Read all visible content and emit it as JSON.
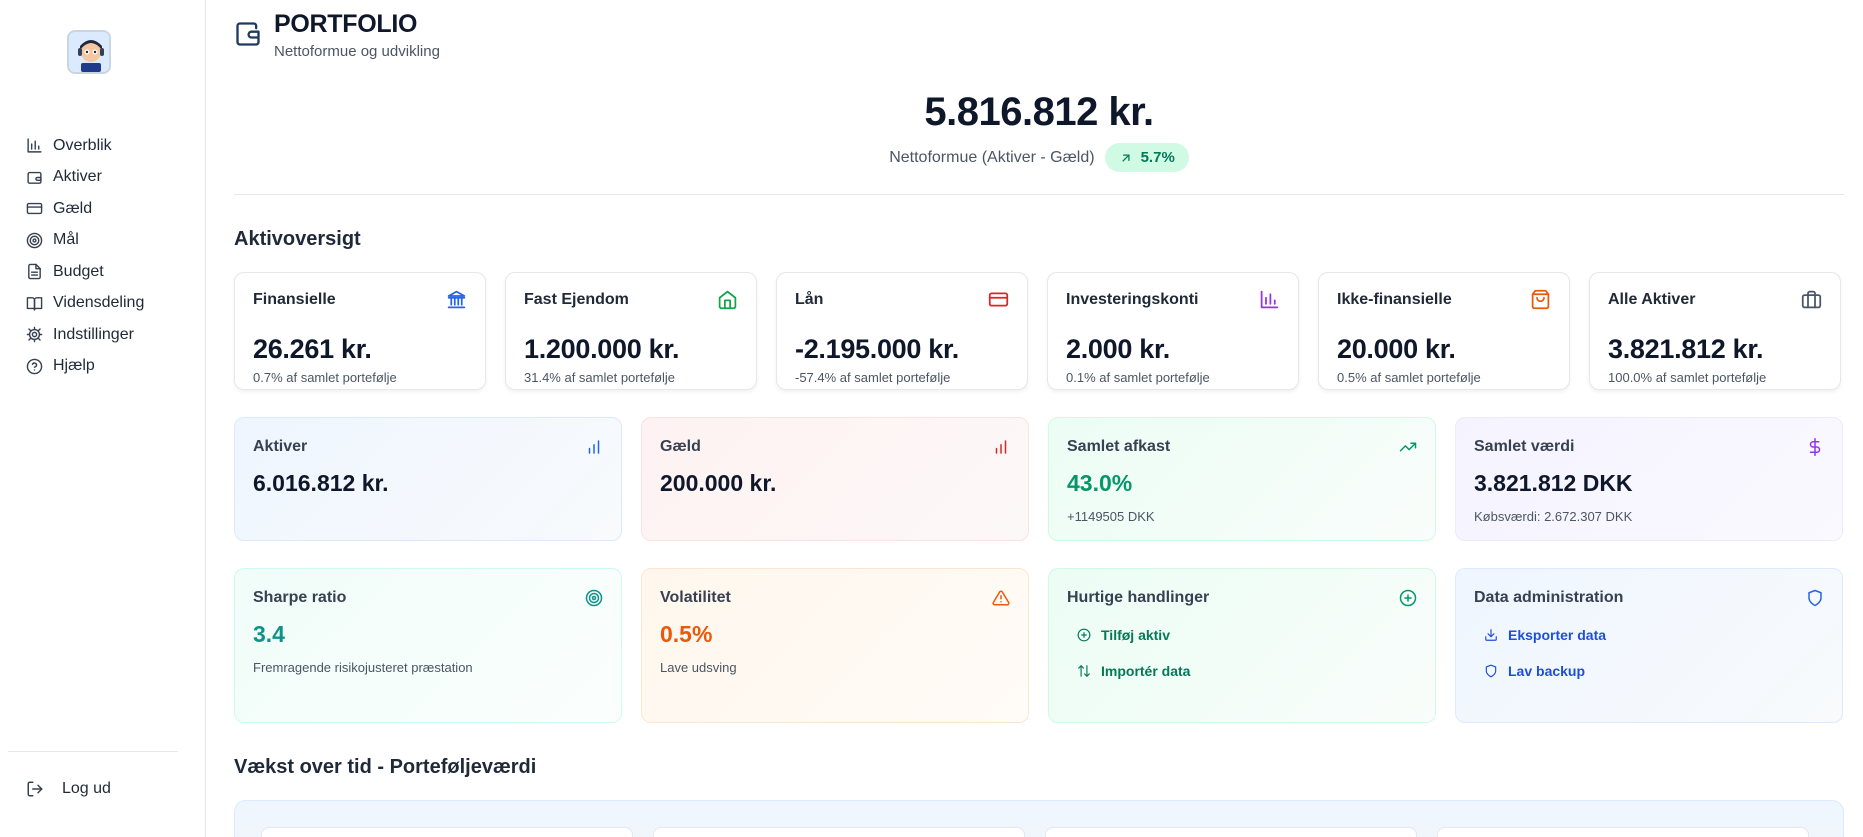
{
  "sidebar": {
    "items": [
      {
        "label": "Overblik",
        "icon": "bar-chart-icon"
      },
      {
        "label": "Aktiver",
        "icon": "wallet-icon"
      },
      {
        "label": "Gæld",
        "icon": "credit-card-icon"
      },
      {
        "label": "Mål",
        "icon": "target-icon"
      },
      {
        "label": "Budget",
        "icon": "file-text-icon"
      },
      {
        "label": "Vidensdeling",
        "icon": "book-icon"
      },
      {
        "label": "Indstillinger",
        "icon": "gear-icon"
      },
      {
        "label": "Hjælp",
        "icon": "help-circle-icon"
      }
    ],
    "logout_label": "Log ud"
  },
  "header": {
    "title": "PORTFOLIO",
    "subtitle": "Nettoformue og udvikling"
  },
  "networth": {
    "value": "5.816.812 kr.",
    "label": "Nettoformue (Aktiver - Gæld)",
    "change": "5.7%"
  },
  "asset_overview": {
    "title": "Aktivoversigt",
    "cards": [
      {
        "name": "Finansielle",
        "value": "26.261 kr.",
        "pct": "0.7% af samlet portefølje",
        "icon": "bank-icon",
        "color": "#2563eb"
      },
      {
        "name": "Fast Ejendom",
        "value": "1.200.000 kr.",
        "pct": "31.4% af samlet portefølje",
        "icon": "home-icon",
        "color": "#16a34a"
      },
      {
        "name": "Lån",
        "value": "-2.195.000 kr.",
        "pct": "-57.4% af samlet portefølje",
        "icon": "credit-card-icon",
        "color": "#dc2626"
      },
      {
        "name": "Investeringskonti",
        "value": "2.000 kr.",
        "pct": "0.1% af samlet portefølje",
        "icon": "bar-chart-icon",
        "color": "#9333ea"
      },
      {
        "name": "Ikke-finansielle",
        "value": "20.000 kr.",
        "pct": "0.5% af samlet portefølje",
        "icon": "shopping-bag-icon",
        "color": "#ea580c"
      },
      {
        "name": "Alle Aktiver",
        "value": "3.821.812 kr.",
        "pct": "100.0% af samlet portefølje",
        "icon": "briefcase-icon",
        "color": "#475569"
      }
    ]
  },
  "summary": {
    "aktiver": {
      "name": "Aktiver",
      "value": "6.016.812 kr.",
      "icon": "bar-chart-icon",
      "color": "#2563eb"
    },
    "gaeld": {
      "name": "Gæld",
      "value": "200.000 kr.",
      "icon": "bar-chart-icon",
      "color": "#dc2626"
    },
    "afkast": {
      "name": "Samlet afkast",
      "value": "43.0%",
      "sub": "+1149505 DKK",
      "icon": "trending-up-icon",
      "color": "#059669"
    },
    "vaerdi": {
      "name": "Samlet værdi",
      "value": "3.821.812 DKK",
      "sub": "Købsværdi: 2.672.307 DKK",
      "icon": "dollar-icon",
      "color": "#9333ea"
    }
  },
  "metrics": {
    "sharpe": {
      "name": "Sharpe ratio",
      "value": "3.4",
      "sub": "Fremragende risikojusteret præstation",
      "icon": "target-icon",
      "color": "#0d9488"
    },
    "volatility": {
      "name": "Volatilitet",
      "value": "0.5%",
      "sub": "Lave udsving",
      "icon": "warning-icon",
      "color": "#ea580c"
    },
    "quick_actions": {
      "name": "Hurtige handlinger",
      "add": "Tilføj aktiv",
      "import": "Importér data",
      "color": "#047857"
    },
    "data_admin": {
      "name": "Data administration",
      "export": "Eksporter data",
      "backup": "Lav backup",
      "color": "#1d4ed8"
    }
  },
  "growth": {
    "title": "Vækst over tid - Porteføljeværdi"
  }
}
